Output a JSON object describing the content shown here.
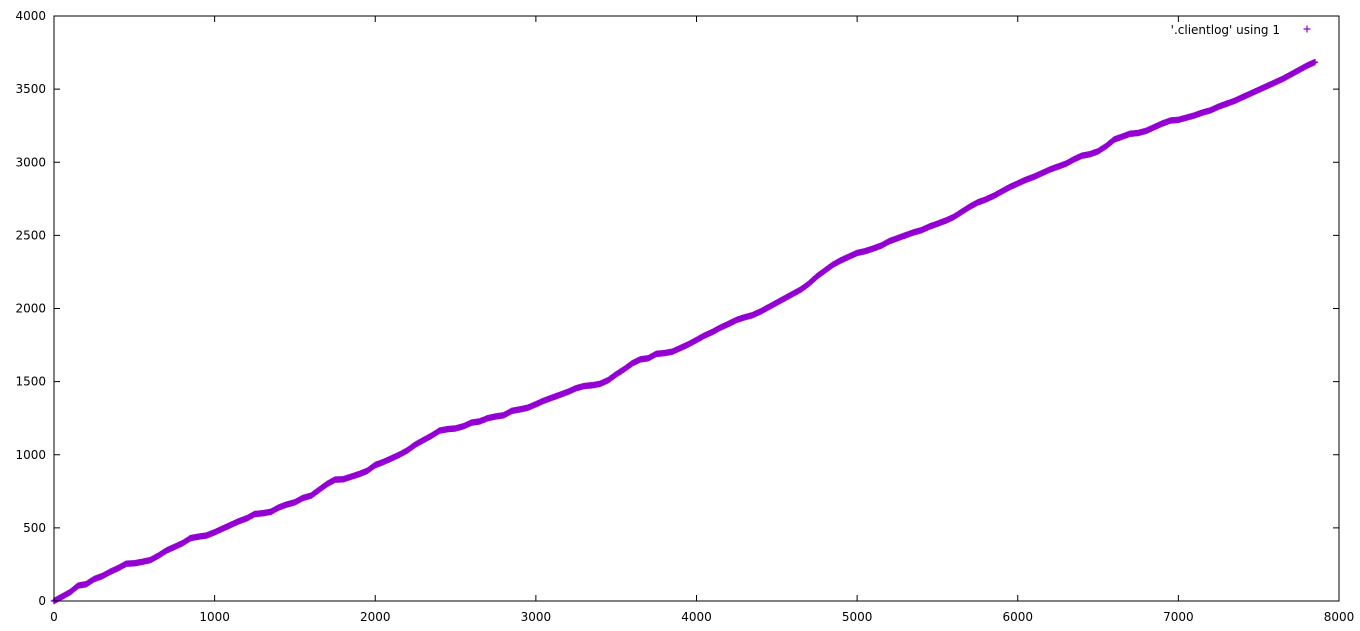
{
  "chart_data": {
    "type": "scatter",
    "title": "",
    "xlabel": "",
    "ylabel": "",
    "xlim": [
      0,
      8000
    ],
    "ylim": [
      0,
      4000
    ],
    "x_ticks": [
      "0",
      "1000",
      "2000",
      "3000",
      "4000",
      "5000",
      "6000",
      "7000",
      "8000"
    ],
    "y_ticks": [
      "0",
      "500",
      "1000",
      "1500",
      "2000",
      "2500",
      "3000",
      "3500",
      "4000"
    ],
    "grid": false,
    "legend_position": "top-right",
    "series": [
      {
        "name": "'.clientlog' using 1",
        "color": "#9400d3",
        "marker": "plus",
        "points": [
          [
            0,
            0
          ],
          [
            100,
            60
          ],
          [
            150,
            105
          ],
          [
            200,
            115
          ],
          [
            250,
            150
          ],
          [
            300,
            170
          ],
          [
            350,
            200
          ],
          [
            400,
            225
          ],
          [
            450,
            255
          ],
          [
            500,
            258
          ],
          [
            550,
            268
          ],
          [
            600,
            280
          ],
          [
            650,
            310
          ],
          [
            700,
            345
          ],
          [
            750,
            370
          ],
          [
            800,
            395
          ],
          [
            850,
            430
          ],
          [
            900,
            440
          ],
          [
            950,
            448
          ],
          [
            1000,
            470
          ],
          [
            1050,
            495
          ],
          [
            1100,
            520
          ],
          [
            1150,
            545
          ],
          [
            1200,
            565
          ],
          [
            1250,
            595
          ],
          [
            1300,
            600
          ],
          [
            1350,
            610
          ],
          [
            1400,
            640
          ],
          [
            1450,
            660
          ],
          [
            1500,
            675
          ],
          [
            1550,
            705
          ],
          [
            1600,
            720
          ],
          [
            1650,
            760
          ],
          [
            1700,
            800
          ],
          [
            1750,
            830
          ],
          [
            1800,
            832
          ],
          [
            1850,
            850
          ],
          [
            1900,
            868
          ],
          [
            1950,
            890
          ],
          [
            2000,
            930
          ],
          [
            2050,
            950
          ],
          [
            2100,
            975
          ],
          [
            2150,
            1000
          ],
          [
            2200,
            1030
          ],
          [
            2250,
            1070
          ],
          [
            2300,
            1100
          ],
          [
            2350,
            1130
          ],
          [
            2400,
            1165
          ],
          [
            2450,
            1175
          ],
          [
            2500,
            1180
          ],
          [
            2550,
            1195
          ],
          [
            2600,
            1220
          ],
          [
            2650,
            1228
          ],
          [
            2700,
            1250
          ],
          [
            2750,
            1262
          ],
          [
            2800,
            1270
          ],
          [
            2850,
            1300
          ],
          [
            2900,
            1310
          ],
          [
            2950,
            1322
          ],
          [
            3000,
            1345
          ],
          [
            3050,
            1370
          ],
          [
            3100,
            1390
          ],
          [
            3150,
            1410
          ],
          [
            3200,
            1430
          ],
          [
            3250,
            1455
          ],
          [
            3300,
            1470
          ],
          [
            3350,
            1475
          ],
          [
            3400,
            1485
          ],
          [
            3450,
            1510
          ],
          [
            3500,
            1550
          ],
          [
            3550,
            1585
          ],
          [
            3600,
            1625
          ],
          [
            3650,
            1652
          ],
          [
            3700,
            1660
          ],
          [
            3750,
            1690
          ],
          [
            3800,
            1695
          ],
          [
            3850,
            1705
          ],
          [
            3900,
            1730
          ],
          [
            3950,
            1755
          ],
          [
            4000,
            1785
          ],
          [
            4050,
            1815
          ],
          [
            4100,
            1840
          ],
          [
            4150,
            1870
          ],
          [
            4200,
            1895
          ],
          [
            4250,
            1922
          ],
          [
            4300,
            1940
          ],
          [
            4350,
            1955
          ],
          [
            4400,
            1980
          ],
          [
            4450,
            2010
          ],
          [
            4500,
            2040
          ],
          [
            4550,
            2070
          ],
          [
            4600,
            2100
          ],
          [
            4650,
            2130
          ],
          [
            4700,
            2170
          ],
          [
            4750,
            2220
          ],
          [
            4800,
            2260
          ],
          [
            4850,
            2300
          ],
          [
            4900,
            2330
          ],
          [
            4950,
            2355
          ],
          [
            5000,
            2380
          ],
          [
            5050,
            2392
          ],
          [
            5100,
            2410
          ],
          [
            5150,
            2430
          ],
          [
            5200,
            2460
          ],
          [
            5250,
            2480
          ],
          [
            5300,
            2500
          ],
          [
            5350,
            2520
          ],
          [
            5400,
            2535
          ],
          [
            5450,
            2560
          ],
          [
            5500,
            2580
          ],
          [
            5550,
            2600
          ],
          [
            5600,
            2625
          ],
          [
            5650,
            2660
          ],
          [
            5700,
            2695
          ],
          [
            5750,
            2725
          ],
          [
            5800,
            2745
          ],
          [
            5850,
            2770
          ],
          [
            5900,
            2800
          ],
          [
            5950,
            2830
          ],
          [
            6000,
            2855
          ],
          [
            6050,
            2880
          ],
          [
            6100,
            2900
          ],
          [
            6150,
            2925
          ],
          [
            6200,
            2950
          ],
          [
            6250,
            2970
          ],
          [
            6300,
            2990
          ],
          [
            6350,
            3020
          ],
          [
            6400,
            3045
          ],
          [
            6450,
            3055
          ],
          [
            6500,
            3075
          ],
          [
            6550,
            3110
          ],
          [
            6600,
            3155
          ],
          [
            6650,
            3175
          ],
          [
            6700,
            3195
          ],
          [
            6750,
            3200
          ],
          [
            6800,
            3215
          ],
          [
            6850,
            3240
          ],
          [
            6900,
            3265
          ],
          [
            6950,
            3285
          ],
          [
            7000,
            3290
          ],
          [
            7050,
            3305
          ],
          [
            7100,
            3320
          ],
          [
            7150,
            3340
          ],
          [
            7200,
            3355
          ],
          [
            7250,
            3380
          ],
          [
            7300,
            3400
          ],
          [
            7350,
            3420
          ],
          [
            7400,
            3445
          ],
          [
            7450,
            3470
          ],
          [
            7500,
            3495
          ],
          [
            7550,
            3520
          ],
          [
            7600,
            3545
          ],
          [
            7650,
            3570
          ],
          [
            7700,
            3600
          ],
          [
            7750,
            3630
          ],
          [
            7800,
            3660
          ],
          [
            7850,
            3685
          ]
        ]
      }
    ]
  }
}
